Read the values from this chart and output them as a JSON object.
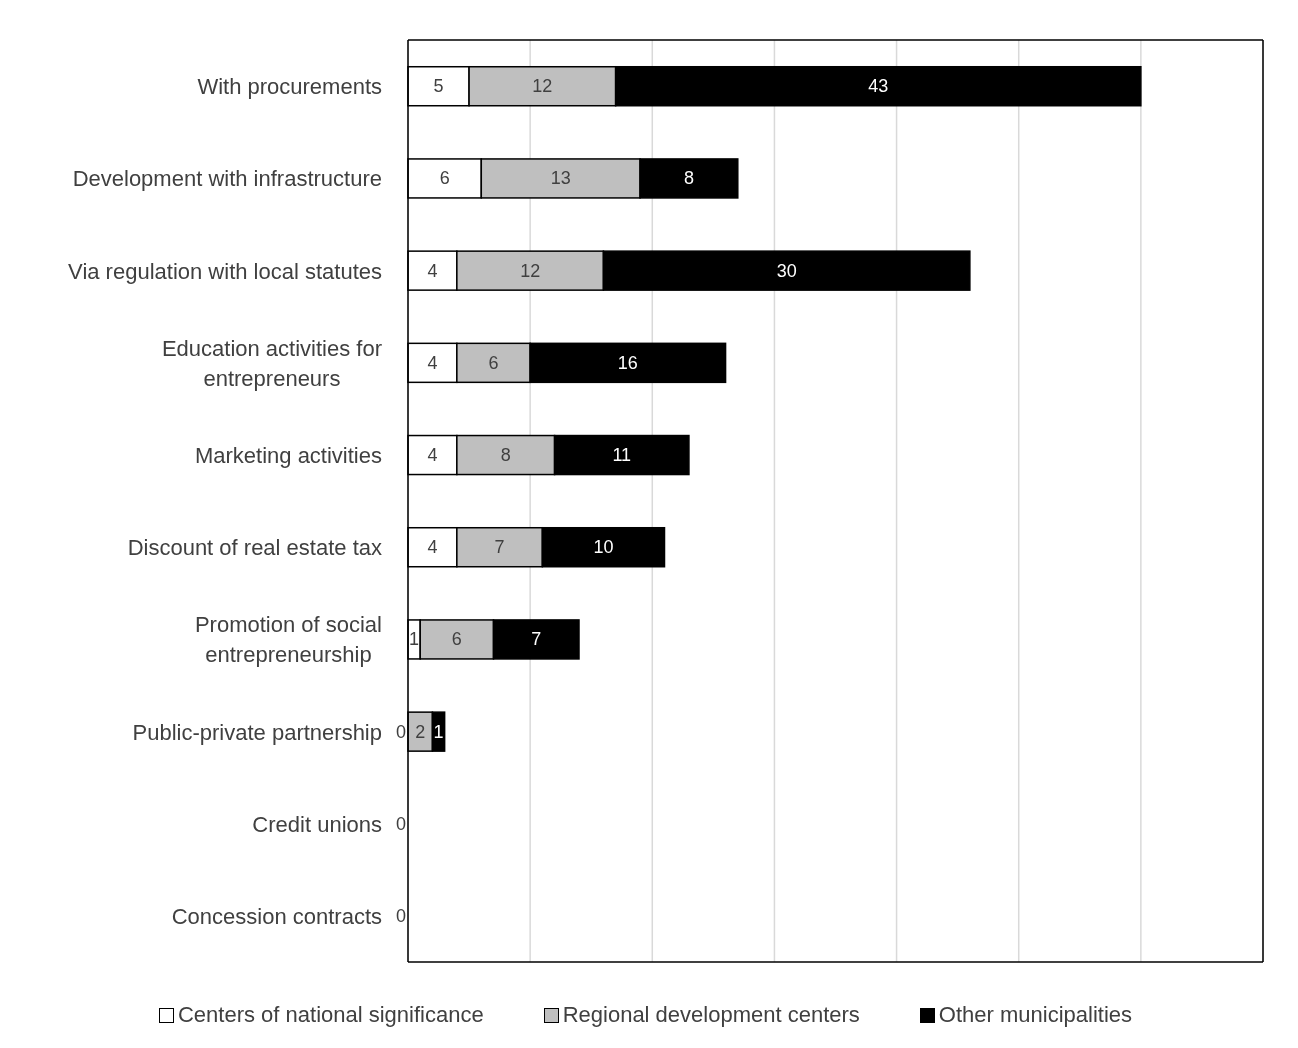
{
  "chart_data": {
    "type": "bar",
    "orientation": "horizontal",
    "stacked": true,
    "categories": [
      "With procurements",
      "Development with infrastructure",
      "Via regulation with local statutes",
      "Education activities for entrepreneurs",
      "Marketing activities",
      "Discount of real estate tax",
      "Promotion of social entrepreneurship",
      "Public-private partnership",
      "Credit unions",
      "Concession contracts"
    ],
    "series": [
      {
        "name": "Centers of national significance",
        "color": "#ffffff",
        "values": [
          5,
          6,
          4,
          4,
          4,
          4,
          1,
          0,
          0,
          0
        ],
        "value_labels": [
          "5",
          "6",
          "4",
          "4",
          "4",
          "4",
          "1",
          "0",
          "0",
          "0"
        ]
      },
      {
        "name": "Regional development centers",
        "color": "#bfbfbf",
        "values": [
          12,
          13,
          12,
          6,
          8,
          7,
          6,
          2,
          0,
          0
        ],
        "value_labels": [
          "12",
          "13",
          "12",
          "6",
          "8",
          "7",
          "6",
          "2",
          null,
          null
        ]
      },
      {
        "name": "Other municipalities",
        "color": "#000000",
        "values": [
          43,
          8,
          30,
          16,
          11,
          10,
          7,
          1,
          0,
          0
        ],
        "value_labels": [
          "43",
          "8",
          "30",
          "16",
          "11",
          "10",
          "7",
          "1",
          null,
          null
        ]
      }
    ],
    "xlim": [
      0,
      70
    ],
    "tick_labels": "y",
    "grid": "x",
    "legend": "bottom"
  }
}
